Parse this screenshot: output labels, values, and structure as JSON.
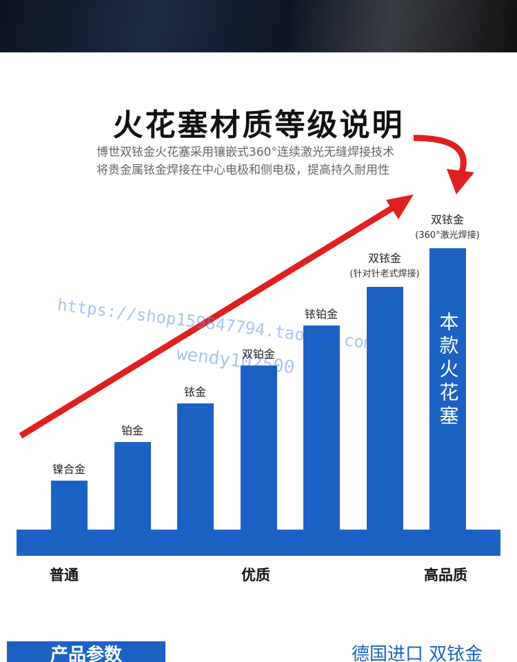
{
  "header": {
    "title": "火花塞材质等级说明",
    "lines": [
      "博世双铱金火花塞采用镶嵌式360°连续激光无缝焊接技术",
      "将贵金属铱金焊接在中心电极和侧电极，提高持久耐用性"
    ]
  },
  "bars": [
    {
      "label": "镍合金"
    },
    {
      "label": "铂金"
    },
    {
      "label": "铱金"
    },
    {
      "label": "双铂金"
    },
    {
      "label": "铱铂金"
    },
    {
      "label": "双铱金",
      "note": "(针对针老式焊接)"
    },
    {
      "label": "双铱金",
      "note": "(360°激光焊接)",
      "inner": "本款火花塞"
    }
  ],
  "axis_labels": [
    "普通",
    "优质",
    "高品质"
  ],
  "watermarks": [
    "https://shop159847794.taobao.com",
    "wendy102500"
  ],
  "footer": {
    "tag": "产品参数",
    "text": "德国进口 双铱金"
  }
}
